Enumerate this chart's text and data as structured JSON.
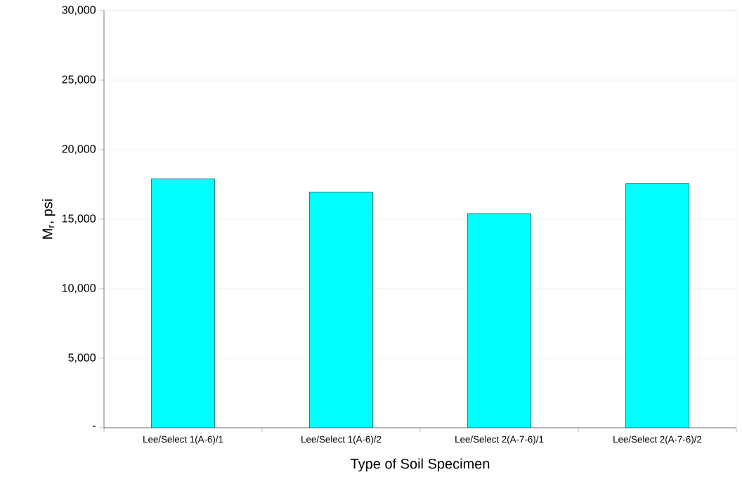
{
  "chart_data": {
    "type": "bar",
    "xlabel": "Type of Soil Specimen",
    "ylabel": "M$_{r}$, psi",
    "categories": [
      "Lee/Select 1(A-6)/1",
      "Lee/Select 1(A-6)/2",
      "Lee/Select 2(A-7-6)/1",
      "Lee/Select 2(A-7-6)/2"
    ],
    "values": [
      17900,
      16950,
      15400,
      17550
    ],
    "color": "#00ffff",
    "ylim": [
      0,
      30000
    ],
    "yticks": [
      {
        "value": 0,
        "label": "-"
      },
      {
        "value": 5000,
        "label": "5,000"
      },
      {
        "value": 10000,
        "label": "10,000"
      },
      {
        "value": 15000,
        "label": "15,000"
      },
      {
        "value": 20000,
        "label": "20,000"
      },
      {
        "value": 25000,
        "label": "25,000"
      },
      {
        "value": 30000,
        "label": "30,000"
      }
    ],
    "grid": "y"
  }
}
